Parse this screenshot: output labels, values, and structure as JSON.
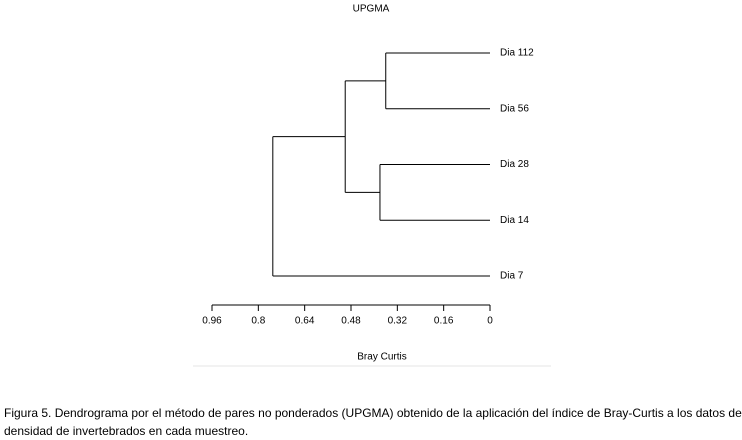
{
  "chart_data": {
    "type": "dendrogram",
    "title": "UPGMA",
    "leaves": [
      "Dia 112",
      "Dia 56",
      "Dia 28",
      "Dia 14",
      "Dia 7"
    ],
    "merges": [
      {
        "children": [
          0,
          1
        ],
        "height": 0.36
      },
      {
        "children": [
          2,
          3
        ],
        "height": 0.38
      },
      {
        "children": [
          5,
          6
        ],
        "height": 0.5
      },
      {
        "children": [
          7,
          4
        ],
        "height": 0.75
      }
    ],
    "xlabel": "Bray Curtis",
    "xlim": [
      0.96,
      0
    ],
    "xticks": [
      0.96,
      0.8,
      0.64,
      0.48,
      0.32,
      0.16,
      0
    ],
    "color": "#000000",
    "caption": "Figura 5. Dendrograma por el método de pares no ponderados (UPGMA) obtenido de la aplicación del índice de Bray-Curtis a los datos de densidad de invertebrados en cada muestreo."
  }
}
